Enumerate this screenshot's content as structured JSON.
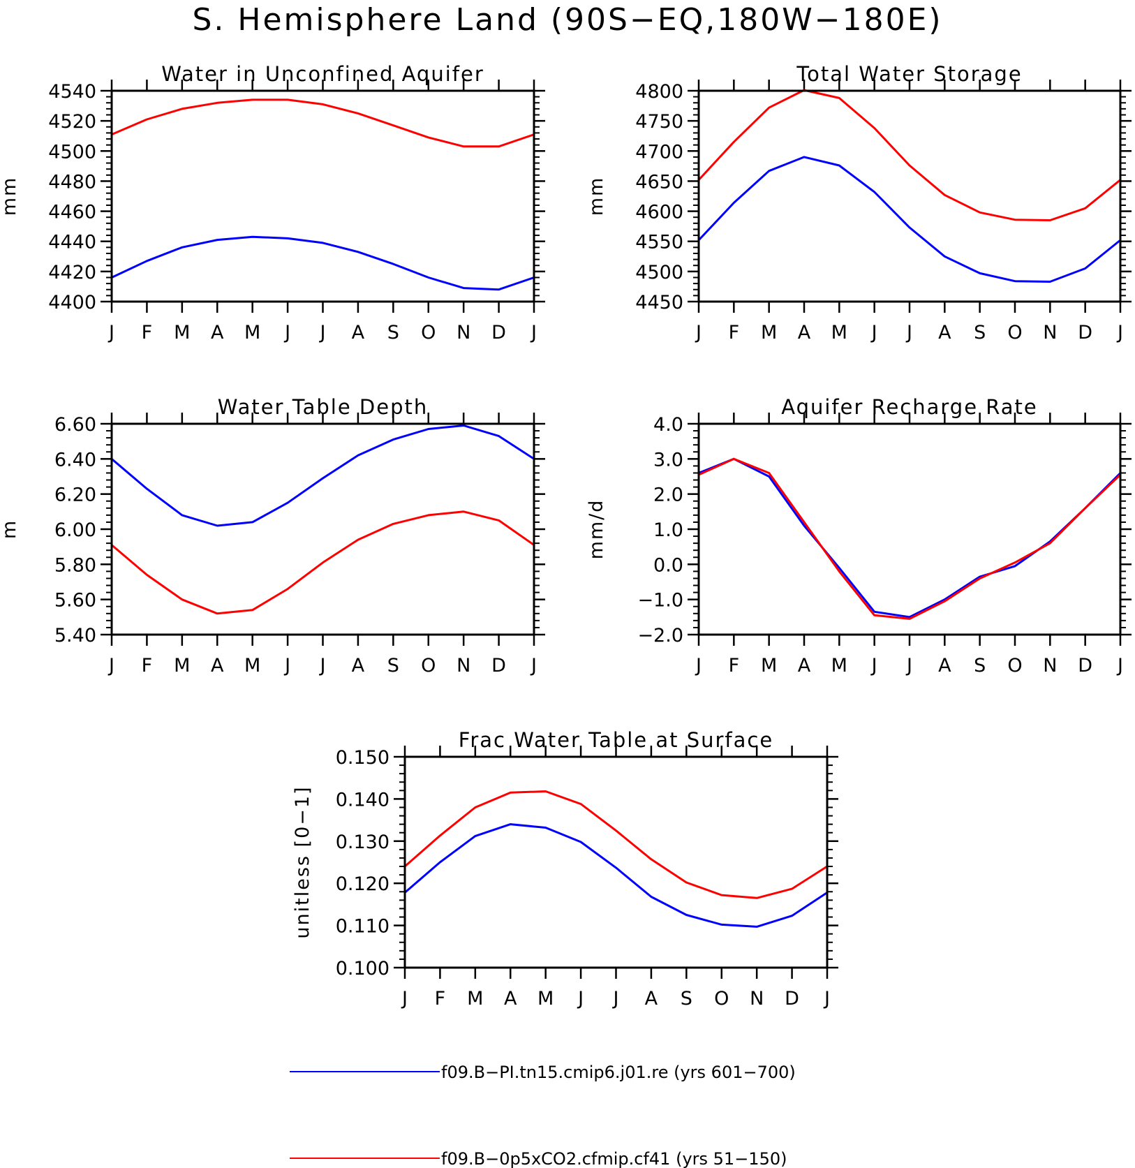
{
  "title": "S. Hemisphere Land (90S−EQ,180W−180E)",
  "legend": [
    {
      "label": "f09.B−PI.tn15.cmip6.j01.re (yrs 601−700)",
      "color": "#0000ff"
    },
    {
      "label": "f09.B−0p5xCO2.cfmip.cf41 (yrs 51−150)",
      "color": "#ff0000"
    }
  ],
  "chart_data": [
    {
      "type": "line",
      "title": "Water in Unconfined Aquifer",
      "ylabel": "mm",
      "x": [
        "J",
        "F",
        "M",
        "A",
        "M",
        "J",
        "J",
        "A",
        "S",
        "O",
        "N",
        "D",
        "J"
      ],
      "ylim": [
        4400,
        4540
      ],
      "yticks": [
        4400,
        4420,
        4440,
        4460,
        4480,
        4500,
        4520,
        4540
      ],
      "ytick_labels": [
        "4400",
        "4420",
        "4440",
        "4460",
        "4480",
        "4500",
        "4520",
        "4540"
      ],
      "yminor": 4,
      "series": [
        {
          "name": "f09.B−PI.tn15.cmip6.j01.re (yrs 601−700)",
          "color": "#0000ff",
          "values": [
            4416,
            4427,
            4436,
            4441,
            4443,
            4442,
            4439,
            4433,
            4425,
            4416,
            4409,
            4408,
            4416
          ]
        },
        {
          "name": "f09.B−0p5xCO2.cfmip.cf41 (yrs 51−150)",
          "color": "#ff0000",
          "values": [
            4511,
            4521,
            4528,
            4532,
            4534,
            4534,
            4531,
            4525,
            4517,
            4509,
            4503,
            4503,
            4511
          ]
        }
      ]
    },
    {
      "type": "line",
      "title": "Total Water Storage",
      "ylabel": "mm",
      "x": [
        "J",
        "F",
        "M",
        "A",
        "M",
        "J",
        "J",
        "A",
        "S",
        "O",
        "N",
        "D",
        "J"
      ],
      "ylim": [
        4450,
        4800
      ],
      "yticks": [
        4450,
        4500,
        4550,
        4600,
        4650,
        4700,
        4750,
        4800
      ],
      "ytick_labels": [
        "4450",
        "4500",
        "4550",
        "4600",
        "4650",
        "4700",
        "4750",
        "4800"
      ],
      "yminor": 4,
      "series": [
        {
          "name": "f09.B−PI.tn15.cmip6.j01.re (yrs 601−700)",
          "color": "#0000ff",
          "values": [
            4552,
            4614,
            4667,
            4690,
            4676,
            4632,
            4573,
            4525,
            4497,
            4484,
            4483,
            4505,
            4552
          ]
        },
        {
          "name": "f09.B−0p5xCO2.cfmip.cf41 (yrs 51−150)",
          "color": "#ff0000",
          "values": [
            4652,
            4715,
            4772,
            4801,
            4788,
            4738,
            4676,
            4627,
            4598,
            4586,
            4585,
            4605,
            4652
          ]
        }
      ]
    },
    {
      "type": "line",
      "title": "Water Table Depth",
      "ylabel": "m",
      "x": [
        "J",
        "F",
        "M",
        "A",
        "M",
        "J",
        "J",
        "A",
        "S",
        "O",
        "N",
        "D",
        "J"
      ],
      "ylim": [
        5.4,
        6.6
      ],
      "yticks": [
        5.4,
        5.6,
        5.8,
        6.0,
        6.2,
        6.4,
        6.6
      ],
      "ytick_labels": [
        "5.40",
        "5.60",
        "5.80",
        "6.00",
        "6.20",
        "6.40",
        "6.60"
      ],
      "yminor": 4,
      "series": [
        {
          "name": "f09.B−PI.tn15.cmip6.j01.re (yrs 601−700)",
          "color": "#0000ff",
          "values": [
            6.4,
            6.23,
            6.08,
            6.02,
            6.04,
            6.15,
            6.29,
            6.42,
            6.51,
            6.57,
            6.59,
            6.53,
            6.4
          ]
        },
        {
          "name": "f09.B−0p5xCO2.cfmip.cf41 (yrs 51−150)",
          "color": "#ff0000",
          "values": [
            5.91,
            5.74,
            5.6,
            5.52,
            5.54,
            5.66,
            5.81,
            5.94,
            6.03,
            6.08,
            6.1,
            6.05,
            5.91
          ]
        }
      ]
    },
    {
      "type": "line",
      "title": "Aquifer Recharge Rate",
      "ylabel": "mm/d",
      "x": [
        "J",
        "F",
        "M",
        "A",
        "M",
        "J",
        "J",
        "A",
        "S",
        "O",
        "N",
        "D",
        "J"
      ],
      "ylim": [
        -2.0,
        4.0
      ],
      "yticks": [
        -2.0,
        -1.0,
        0.0,
        1.0,
        2.0,
        3.0,
        4.0
      ],
      "ytick_labels": [
        "−2.0",
        "−1.0",
        "0.0",
        "1.0",
        "2.0",
        "3.0",
        "4.0"
      ],
      "yminor": 4,
      "series": [
        {
          "name": "f09.B−PI.tn15.cmip6.j01.re (yrs 601−700)",
          "color": "#0000ff",
          "values": [
            2.6,
            3.0,
            2.5,
            1.1,
            -0.1,
            -1.35,
            -1.5,
            -1.0,
            -0.35,
            -0.05,
            0.65,
            1.6,
            2.6
          ]
        },
        {
          "name": "f09.B−0p5xCO2.cfmip.cf41 (yrs 51−150)",
          "color": "#ff0000",
          "values": [
            2.55,
            3.0,
            2.6,
            1.2,
            -0.2,
            -1.45,
            -1.55,
            -1.05,
            -0.4,
            0.05,
            0.6,
            1.6,
            2.55
          ]
        }
      ]
    },
    {
      "type": "line",
      "title": "Frac Water Table at Surface",
      "ylabel": "unitless [0−1]",
      "x": [
        "J",
        "F",
        "M",
        "A",
        "M",
        "J",
        "J",
        "A",
        "S",
        "O",
        "N",
        "D",
        "J"
      ],
      "ylim": [
        0.1,
        0.15
      ],
      "yticks": [
        0.1,
        0.11,
        0.12,
        0.13,
        0.14,
        0.15
      ],
      "ytick_labels": [
        "0.100",
        "0.110",
        "0.120",
        "0.130",
        "0.140",
        "0.150"
      ],
      "yminor": 4,
      "series": [
        {
          "name": "f09.B−PI.tn15.cmip6.j01.re (yrs 601−700)",
          "color": "#0000ff",
          "values": [
            0.1178,
            0.125,
            0.1312,
            0.134,
            0.1332,
            0.1298,
            0.1237,
            0.1168,
            0.1125,
            0.1102,
            0.1097,
            0.1123,
            0.1178
          ]
        },
        {
          "name": "f09.B−0p5xCO2.cfmip.cf41 (yrs 51−150)",
          "color": "#ff0000",
          "values": [
            0.124,
            0.1313,
            0.138,
            0.1415,
            0.1418,
            0.1388,
            0.1325,
            0.1257,
            0.1202,
            0.1172,
            0.1165,
            0.1187,
            0.124
          ]
        }
      ]
    }
  ]
}
